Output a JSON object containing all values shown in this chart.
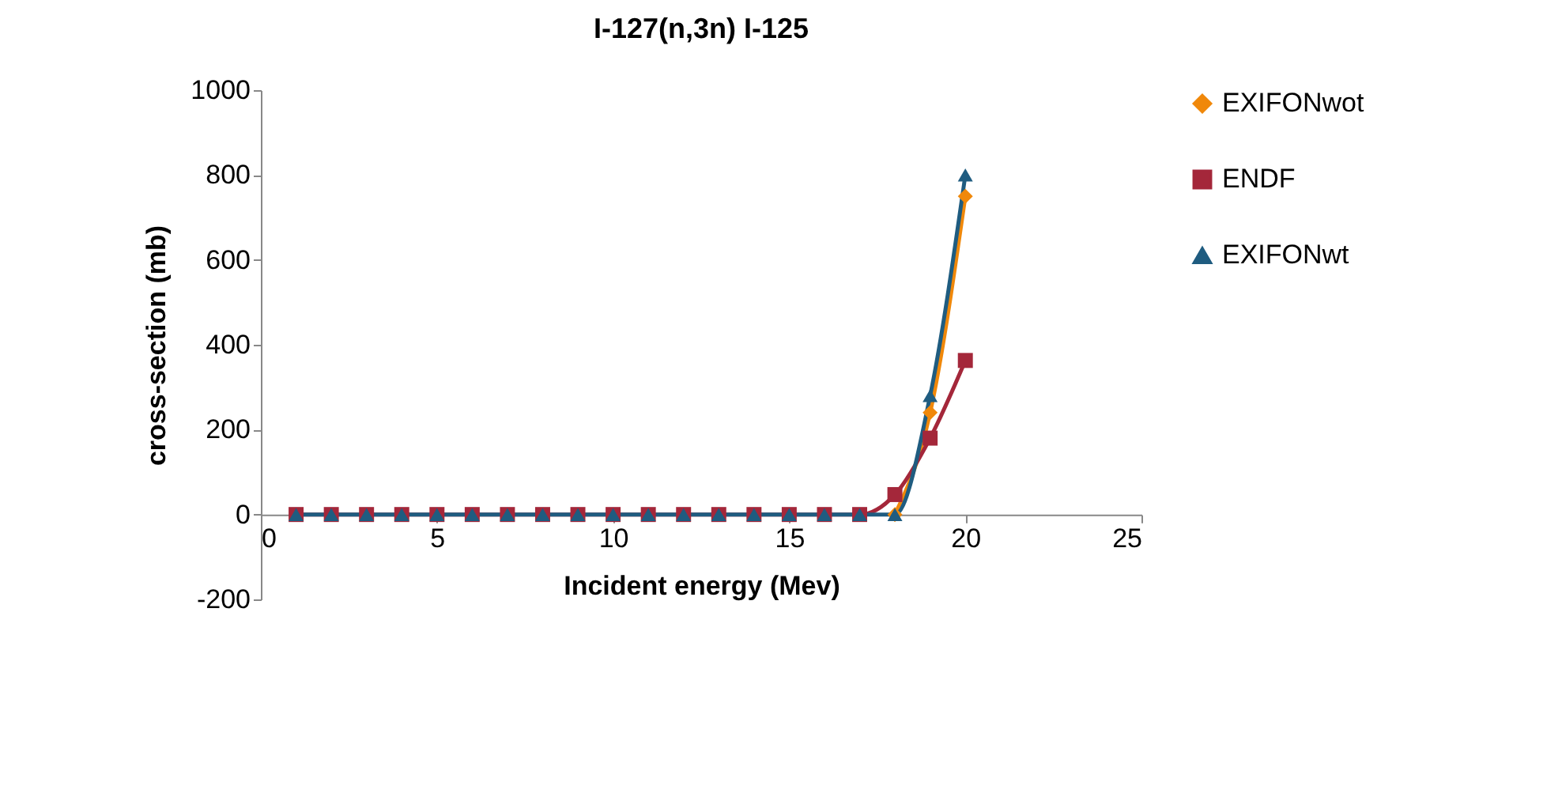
{
  "chart_data": {
    "type": "line",
    "title": "I-127(n,3n) I-125",
    "xlabel": "Incident energy (Mev)",
    "ylabel": "cross-section (mb)",
    "xlim": [
      0,
      25
    ],
    "xticks": [
      0,
      5,
      10,
      15,
      20,
      25
    ],
    "ylim": [
      -200,
      1000
    ],
    "yticks": [
      -200,
      0,
      200,
      400,
      600,
      800,
      {
        "value": 1000,
        "label": "1000"
      }
    ],
    "grid": false,
    "legend": "right",
    "line_style": "solid",
    "x": [
      1,
      2,
      3,
      4,
      5,
      6,
      7,
      8,
      9,
      10,
      11,
      12,
      13,
      14,
      15,
      16,
      17,
      18,
      19,
      20
    ],
    "series": [
      {
        "name": "EXIFONwot",
        "color": "#f0880a",
        "marker": "diamond",
        "values": [
          null,
          null,
          null,
          null,
          null,
          null,
          null,
          null,
          null,
          null,
          null,
          null,
          null,
          null,
          null,
          null,
          null,
          0,
          240,
          750
        ]
      },
      {
        "name": "ENDF",
        "color": "#a4273a",
        "marker": "square",
        "values": [
          0,
          0,
          0,
          0,
          0,
          0,
          0,
          0,
          0,
          0,
          0,
          0,
          0,
          0,
          0,
          0,
          0,
          47,
          180,
          363
        ]
      },
      {
        "name": "EXIFONwt",
        "color": "#1f5c80",
        "marker": "triangle",
        "values": [
          0,
          0,
          0,
          0,
          0,
          0,
          0,
          0,
          0,
          0,
          0,
          0,
          0,
          0,
          0,
          0,
          0,
          0,
          280,
          800
        ]
      }
    ]
  }
}
